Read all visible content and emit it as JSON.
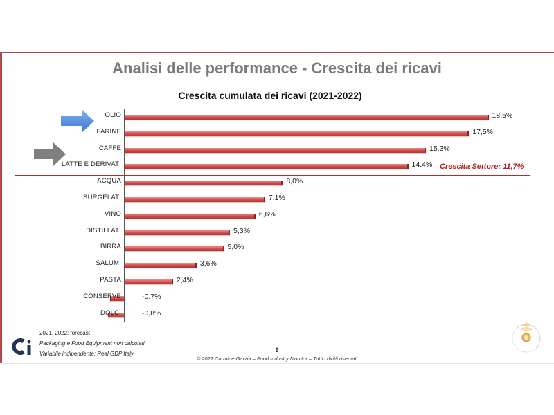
{
  "slide": {
    "title": "Analisi delle performance - Crescita dei ricavi",
    "page_number": "9",
    "copyright": "© 2021 Carmine Garzia – Food Industry Monitor – Tutti i diritti riservati",
    "notes": [
      "2021, 2022: forecast",
      "Packaging e Food Equipment non calcolati",
      "Variabile indipendente: Real GDP Italy"
    ],
    "sector_growth_label": "Crescita Settore: 11,7%",
    "colors": {
      "bar": "#d24a4a",
      "frame": "#b04a4a",
      "separator": "#b22a2a",
      "sector_label": "#b21f1f",
      "arrow_blue": "#4a86d8",
      "arrow_gray": "#7f7f7f",
      "logo": "#1f3352"
    },
    "icons": [
      "arrow-right-blue-icon",
      "arrow-right-gray-icon",
      "ci-logo-icon",
      "seal-emblem-icon"
    ]
  },
  "chart_data": {
    "type": "bar",
    "orientation": "horizontal",
    "title": "Crescita cumulata dei ricavi (2021-2022)",
    "xlabel": "",
    "ylabel": "",
    "categories": [
      "OLIO",
      "FARINE",
      "CAFFE",
      "LATTE E DERIVATI",
      "ACQUA",
      "SURGELATI",
      "VINO",
      "DISTILLATI",
      "BIRRA",
      "SALUMI",
      "PASTA",
      "CONSERVE",
      "DOLCI"
    ],
    "values": [
      18.5,
      17.5,
      15.3,
      14.4,
      8.0,
      7.1,
      6.6,
      5.3,
      5.0,
      3.6,
      2.4,
      -0.7,
      -0.8
    ],
    "labels": [
      "18,5%",
      "17,5%",
      "15,3%",
      "14,4%",
      "8,0%",
      "7,1%",
      "6,6%",
      "5,3%",
      "5,0%",
      "3,6%",
      "2,4%",
      "-0,7%",
      "-0,8%"
    ],
    "unit": "%",
    "annotations": [
      {
        "text": "Crescita Settore: 11,7%",
        "value": 11.7,
        "position": "separator line between LATTE E DERIVATI and ACQUA"
      },
      {
        "text": "blue arrow",
        "points_to": "OLIO"
      },
      {
        "text": "gray arrow",
        "points_to": "CAFFE"
      }
    ],
    "grid": false,
    "legend": null
  }
}
